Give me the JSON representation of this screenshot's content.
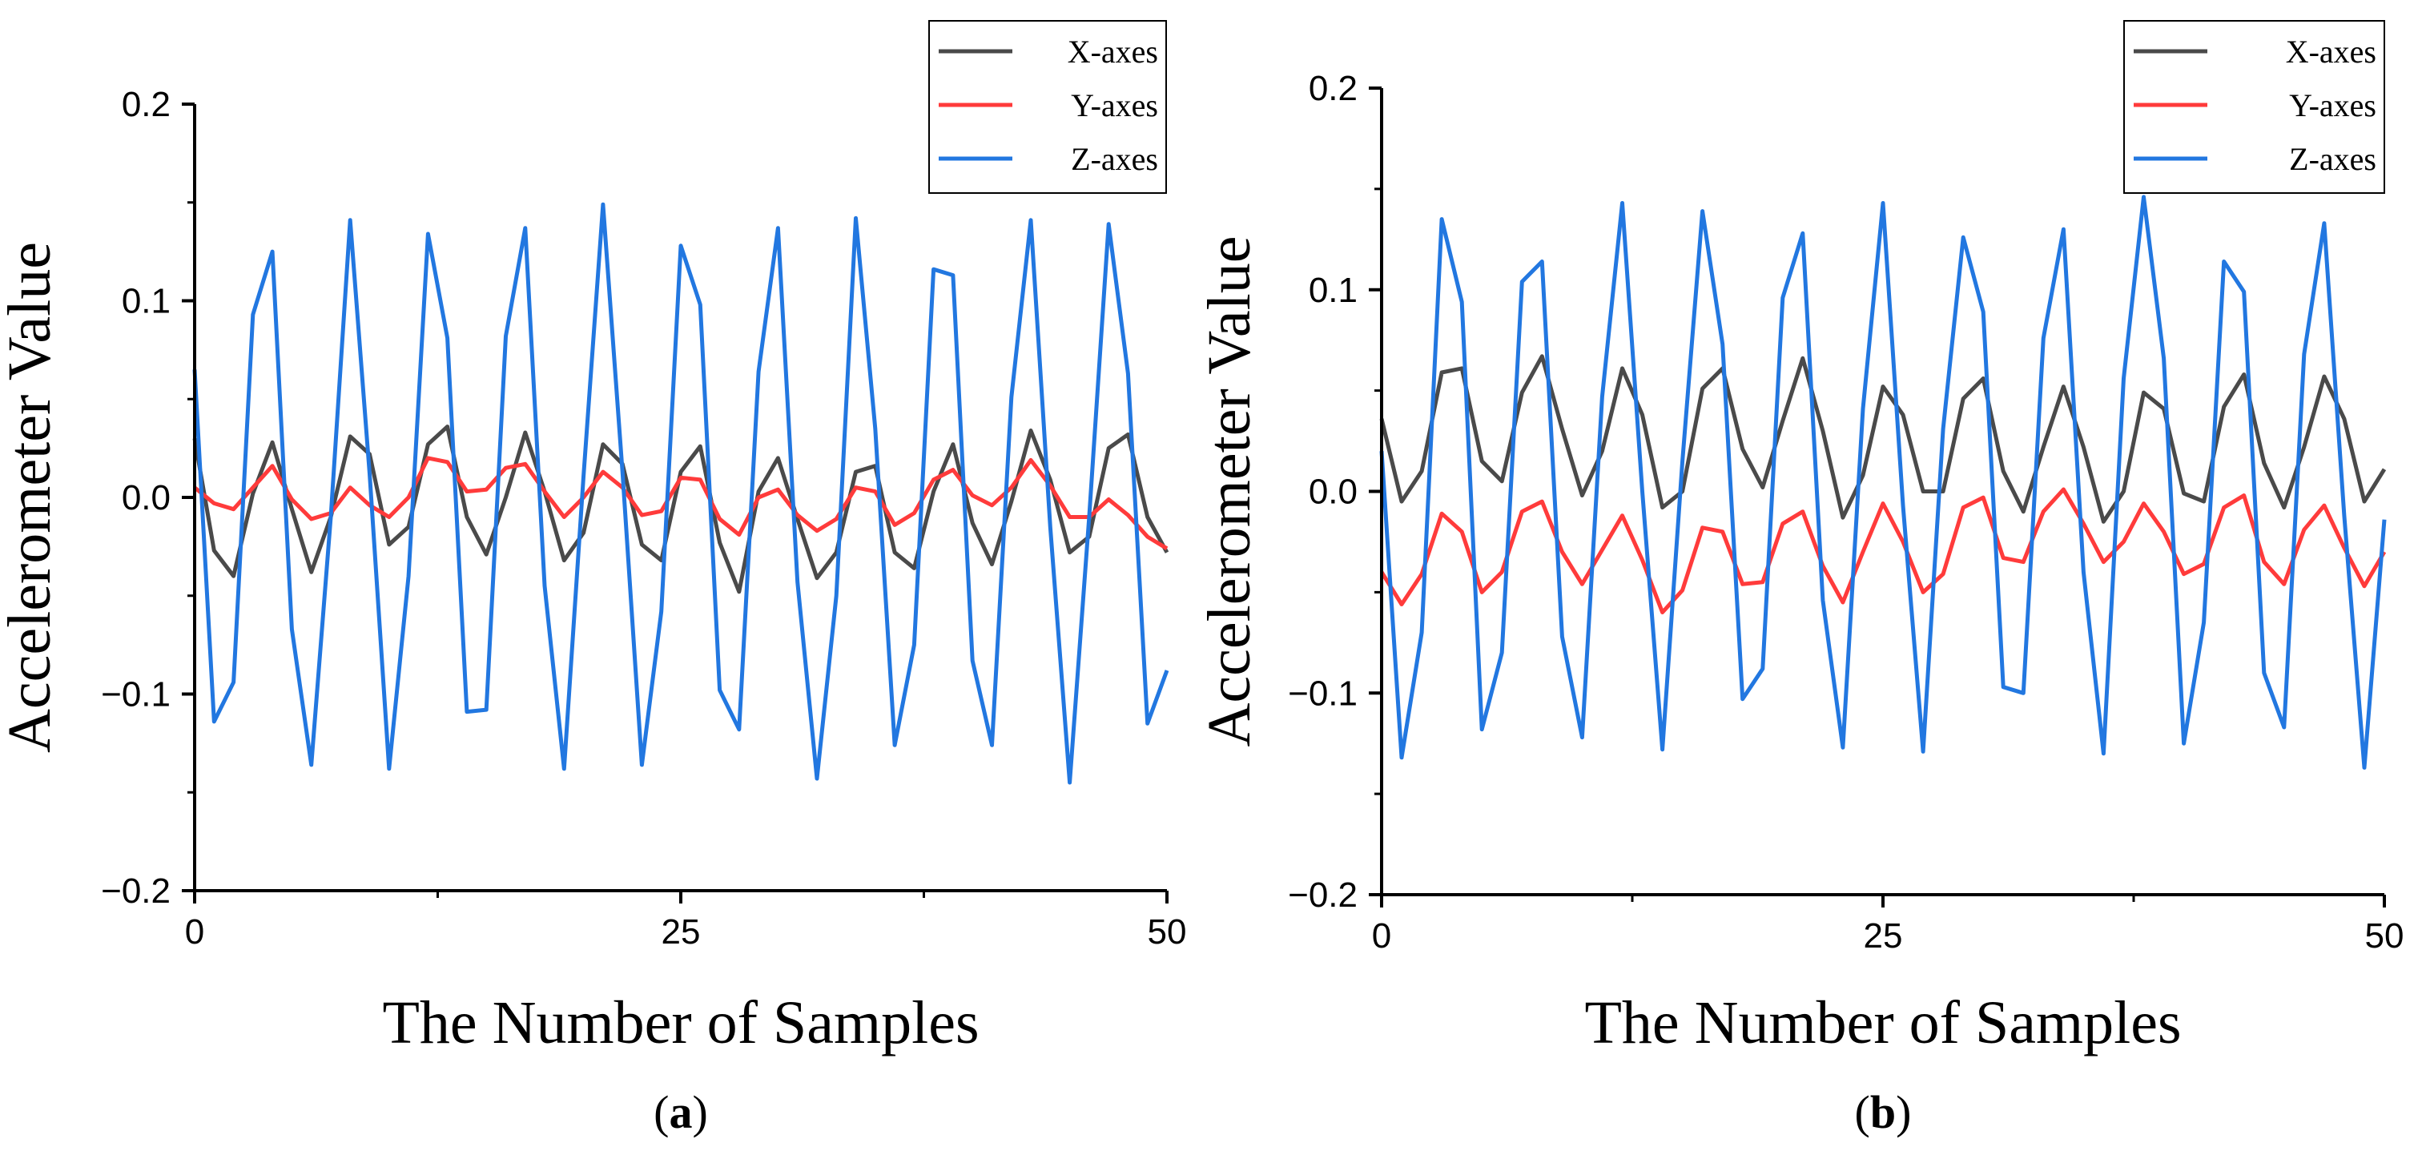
{
  "colors": {
    "x_axes": "#4a4a4a",
    "y_axes": "#ff3b3b",
    "z_axes": "#2277e0",
    "axis": "#000000"
  },
  "chart_data": [
    {
      "type": "line",
      "panel_label": "a",
      "xlabel": "The Number of Samples",
      "ylabel": "Accelerometer Value",
      "xlim": [
        0,
        50
      ],
      "ylim": [
        -0.2,
        0.2
      ],
      "xticks": [
        0,
        25,
        50
      ],
      "yticks": [
        -0.2,
        -0.1,
        0.0,
        0.1,
        0.2
      ],
      "ytick_labels": [
        "−0.2",
        "−0.1",
        "0.0",
        "0.1",
        "0.2"
      ],
      "legend_position": "top-right",
      "series": [
        {
          "name": "X-axes",
          "color_key": "x_axes",
          "values": [
            0.03,
            -0.027,
            -0.04,
            0.002,
            0.028,
            -0.006,
            -0.038,
            -0.01,
            0.031,
            0.022,
            -0.024,
            -0.015,
            0.027,
            0.036,
            -0.01,
            -0.029,
            0.0,
            0.033,
            0.003,
            -0.032,
            -0.018,
            0.027,
            0.017,
            -0.024,
            -0.032,
            0.013,
            0.026,
            -0.023,
            -0.048,
            0.003,
            0.02,
            -0.011,
            -0.041,
            -0.028,
            0.013,
            0.016,
            -0.028,
            -0.036,
            0.003,
            0.027,
            -0.013,
            -0.034,
            -0.002,
            0.034,
            0.009,
            -0.028,
            -0.02,
            0.025,
            0.032,
            -0.01,
            -0.028
          ]
        },
        {
          "name": "Y-axes",
          "color_key": "y_axes",
          "values": [
            0.005,
            -0.003,
            -0.006,
            0.005,
            0.016,
            -0.001,
            -0.011,
            -0.008,
            0.005,
            -0.004,
            -0.01,
            0.0,
            0.02,
            0.018,
            0.003,
            0.004,
            0.015,
            0.017,
            0.003,
            -0.01,
            0.0,
            0.013,
            0.005,
            -0.009,
            -0.007,
            0.01,
            0.009,
            -0.011,
            -0.019,
            0.0,
            0.004,
            -0.009,
            -0.017,
            -0.011,
            0.005,
            0.003,
            -0.014,
            -0.008,
            0.009,
            0.014,
            0.001,
            -0.004,
            0.005,
            0.019,
            0.006,
            -0.01,
            -0.01,
            -0.001,
            -0.009,
            -0.02,
            -0.026
          ]
        },
        {
          "name": "Z-axes",
          "color_key": "z_axes",
          "values": [
            0.065,
            -0.114,
            -0.094,
            0.093,
            0.125,
            -0.067,
            -0.136,
            -0.01,
            0.141,
            0.012,
            -0.138,
            -0.04,
            0.134,
            0.081,
            -0.109,
            -0.108,
            0.082,
            0.137,
            -0.045,
            -0.138,
            0.011,
            0.149,
            0.013,
            -0.136,
            -0.058,
            0.128,
            0.098,
            -0.098,
            -0.118,
            0.064,
            0.137,
            -0.043,
            -0.143,
            -0.05,
            0.142,
            0.035,
            -0.126,
            -0.075,
            0.116,
            0.113,
            -0.083,
            -0.126,
            0.051,
            0.141,
            -0.015,
            -0.145,
            -0.01,
            0.139,
            0.063,
            -0.115,
            -0.088
          ]
        }
      ]
    },
    {
      "type": "line",
      "panel_label": "b",
      "xlabel": "The Number of Samples",
      "ylabel": "Accelerometer Value",
      "xlim": [
        0,
        50
      ],
      "ylim": [
        -0.2,
        0.2
      ],
      "xticks": [
        0,
        25,
        50
      ],
      "yticks": [
        -0.2,
        -0.1,
        0.0,
        0.1,
        0.2
      ],
      "ytick_labels": [
        "−0.2",
        "−0.1",
        "0.0",
        "0.1",
        "0.2"
      ],
      "legend_position": "top-right",
      "series": [
        {
          "name": "X-axes",
          "color_key": "x_axes",
          "values": [
            0.036,
            -0.005,
            0.01,
            0.059,
            0.061,
            0.015,
            0.005,
            0.049,
            0.067,
            0.031,
            -0.002,
            0.02,
            0.061,
            0.038,
            -0.008,
            0.0,
            0.051,
            0.061,
            0.021,
            0.002,
            0.035,
            0.066,
            0.03,
            -0.013,
            0.008,
            0.052,
            0.038,
            0.0,
            0.0,
            0.046,
            0.056,
            0.01,
            -0.01,
            0.022,
            0.052,
            0.022,
            -0.015,
            0.0,
            0.049,
            0.041,
            -0.001,
            -0.005,
            0.042,
            0.058,
            0.014,
            -0.008,
            0.022,
            0.057,
            0.036,
            -0.005,
            0.011
          ]
        },
        {
          "name": "Y-axes",
          "color_key": "y_axes",
          "values": [
            -0.04,
            -0.056,
            -0.041,
            -0.011,
            -0.02,
            -0.05,
            -0.04,
            -0.01,
            -0.005,
            -0.03,
            -0.046,
            -0.029,
            -0.012,
            -0.034,
            -0.06,
            -0.049,
            -0.018,
            -0.02,
            -0.046,
            -0.045,
            -0.016,
            -0.01,
            -0.037,
            -0.055,
            -0.03,
            -0.006,
            -0.025,
            -0.05,
            -0.041,
            -0.008,
            -0.003,
            -0.033,
            -0.035,
            -0.01,
            0.001,
            -0.016,
            -0.035,
            -0.025,
            -0.006,
            -0.02,
            -0.041,
            -0.036,
            -0.008,
            -0.002,
            -0.035,
            -0.046,
            -0.019,
            -0.007,
            -0.028,
            -0.047,
            -0.03
          ]
        },
        {
          "name": "Z-axes",
          "color_key": "z_axes",
          "values": [
            0.02,
            -0.132,
            -0.07,
            0.135,
            0.094,
            -0.118,
            -0.08,
            0.104,
            0.114,
            -0.072,
            -0.122,
            0.047,
            0.143,
            0.0,
            -0.128,
            0.015,
            0.139,
            0.073,
            -0.103,
            -0.088,
            0.096,
            0.128,
            -0.054,
            -0.127,
            0.041,
            0.143,
            -0.007,
            -0.129,
            0.031,
            0.126,
            0.089,
            -0.097,
            -0.1,
            0.076,
            0.13,
            -0.04,
            -0.13,
            0.056,
            0.146,
            0.066,
            -0.125,
            -0.065,
            0.114,
            0.099,
            -0.09,
            -0.117,
            0.068,
            0.133,
            -0.012,
            -0.137,
            -0.014
          ]
        }
      ]
    }
  ]
}
